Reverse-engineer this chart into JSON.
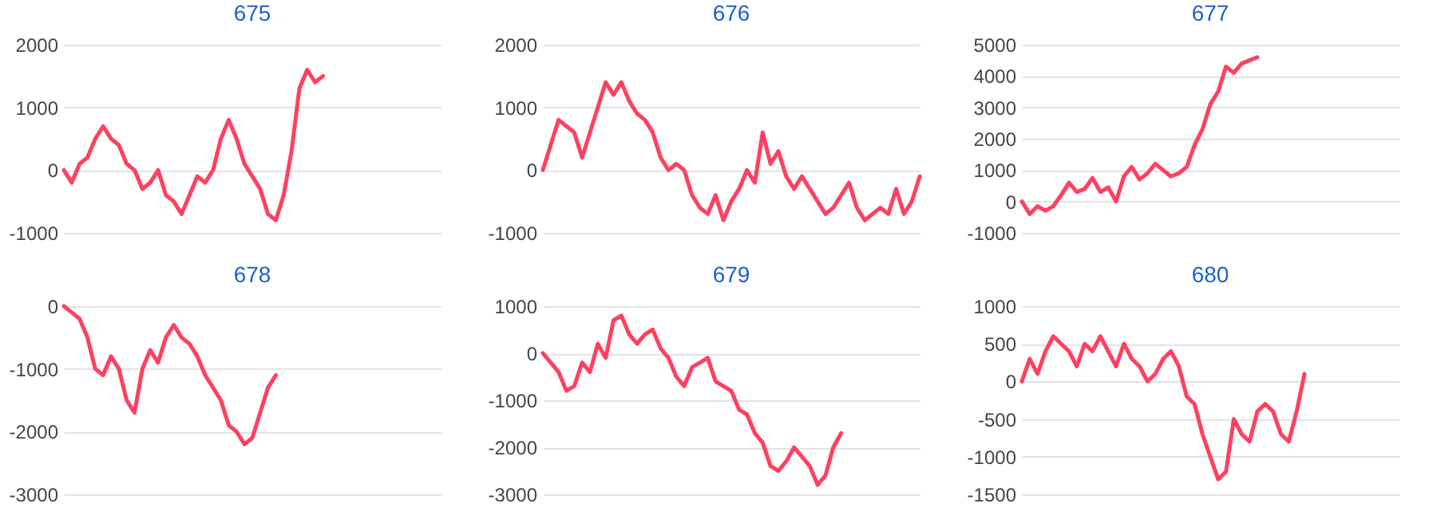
{
  "chart_data": [
    {
      "type": "line",
      "title": "675",
      "categories": [
        null,
        null,
        null,
        null,
        null,
        null,
        null,
        null,
        null,
        null,
        null,
        null,
        null,
        null,
        null,
        null,
        null,
        null,
        null,
        null,
        null,
        null,
        null,
        null,
        null,
        null,
        null,
        null,
        null,
        null,
        null,
        null,
        null,
        null,
        null,
        null,
        null,
        null,
        null,
        null,
        null,
        null,
        null,
        null,
        null,
        null,
        null,
        null,
        null
      ],
      "series": [
        {
          "color": "#ff4060",
          "values": [
            0,
            -200,
            100,
            200,
            500,
            700,
            500,
            400,
            100,
            0,
            -300,
            -200,
            0,
            -400,
            -500,
            -700,
            -400,
            -100,
            -200,
            0,
            500,
            800,
            500,
            100,
            -100,
            -300,
            -700,
            -800,
            -400,
            300,
            1300,
            1600,
            1400,
            1500,
            null,
            null,
            null,
            null,
            null,
            null,
            null,
            null,
            null,
            null,
            null,
            null,
            null,
            null,
            null
          ]
        }
      ],
      "ylim": [
        -1000,
        2000
      ],
      "yticks": [
        -1000,
        0,
        1000,
        2000
      ],
      "grid": "y",
      "tick_labels": "y",
      "marker": "none"
    },
    {
      "type": "line",
      "title": "676",
      "categories": [
        null,
        null,
        null,
        null,
        null,
        null,
        null,
        null,
        null,
        null,
        null,
        null,
        null,
        null,
        null,
        null,
        null,
        null,
        null,
        null,
        null,
        null,
        null,
        null,
        null,
        null,
        null,
        null,
        null,
        null,
        null,
        null,
        null,
        null,
        null,
        null,
        null,
        null,
        null,
        null,
        null,
        null,
        null,
        null,
        null,
        null,
        null,
        null,
        null
      ],
      "series": [
        {
          "color": "#ff4060",
          "values": [
            0,
            400,
            800,
            700,
            600,
            200,
            600,
            1000,
            1400,
            1200,
            1400,
            1100,
            900,
            800,
            600,
            200,
            0,
            100,
            0,
            -400,
            -600,
            -700,
            -400,
            -800,
            -500,
            -300,
            0,
            -200,
            600,
            100,
            300,
            -100,
            -300,
            -100,
            -300,
            -500,
            -700,
            -600,
            -400,
            -200,
            -600,
            -800,
            -700,
            -600,
            -700,
            -300,
            -700,
            -500,
            -100
          ]
        }
      ],
      "ylim": [
        -1000,
        2000
      ],
      "yticks": [
        -1000,
        0,
        1000,
        2000
      ],
      "grid": "y",
      "tick_labels": "y",
      "marker": "none"
    },
    {
      "type": "line",
      "title": "677",
      "categories": [
        null,
        null,
        null,
        null,
        null,
        null,
        null,
        null,
        null,
        null,
        null,
        null,
        null,
        null,
        null,
        null,
        null,
        null,
        null,
        null,
        null,
        null,
        null,
        null,
        null,
        null,
        null,
        null,
        null,
        null,
        null,
        null,
        null,
        null,
        null,
        null,
        null,
        null,
        null,
        null,
        null,
        null,
        null,
        null,
        null,
        null,
        null,
        null,
        null
      ],
      "series": [
        {
          "color": "#ff4060",
          "values": [
            0,
            -400,
            -150,
            -300,
            -150,
            200,
            600,
            300,
            400,
            750,
            300,
            450,
            0,
            800,
            1100,
            700,
            900,
            1200,
            1000,
            800,
            900,
            1100,
            1800,
            2300,
            3100,
            3500,
            4300,
            4100,
            4400,
            4500,
            4600,
            null,
            null,
            null,
            null,
            null,
            null,
            null,
            null,
            null,
            null,
            null,
            null,
            null,
            null,
            null,
            null,
            null,
            null
          ]
        }
      ],
      "ylim": [
        -1000,
        5000
      ],
      "yticks": [
        -1000,
        0,
        1000,
        2000,
        3000,
        4000,
        5000
      ],
      "grid": "y",
      "tick_labels": "y",
      "marker": "none"
    },
    {
      "type": "line",
      "title": "678",
      "categories": [
        null,
        null,
        null,
        null,
        null,
        null,
        null,
        null,
        null,
        null,
        null,
        null,
        null,
        null,
        null,
        null,
        null,
        null,
        null,
        null,
        null,
        null,
        null,
        null,
        null,
        null,
        null,
        null,
        null,
        null,
        null,
        null,
        null,
        null,
        null,
        null,
        null,
        null,
        null,
        null,
        null,
        null,
        null,
        null,
        null,
        null,
        null,
        null,
        null
      ],
      "series": [
        {
          "color": "#ff4060",
          "values": [
            0,
            -100,
            -200,
            -500,
            -1000,
            -1100,
            -800,
            -1000,
            -1500,
            -1700,
            -1000,
            -700,
            -900,
            -500,
            -300,
            -500,
            -600,
            -800,
            -1100,
            -1300,
            -1500,
            -1900,
            -2000,
            -2200,
            -2100,
            -1700,
            -1300,
            -1100,
            null,
            null,
            null,
            null,
            null,
            null,
            null,
            null,
            null,
            null,
            null,
            null,
            null,
            null,
            null,
            null,
            null,
            null,
            null,
            null,
            null
          ]
        }
      ],
      "ylim": [
        -3000,
        0
      ],
      "yticks": [
        -3000,
        -2000,
        -1000,
        0
      ],
      "grid": "y",
      "tick_labels": "y",
      "marker": "none"
    },
    {
      "type": "line",
      "title": "679",
      "categories": [
        null,
        null,
        null,
        null,
        null,
        null,
        null,
        null,
        null,
        null,
        null,
        null,
        null,
        null,
        null,
        null,
        null,
        null,
        null,
        null,
        null,
        null,
        null,
        null,
        null,
        null,
        null,
        null,
        null,
        null,
        null,
        null,
        null,
        null,
        null,
        null,
        null,
        null,
        null,
        null,
        null,
        null,
        null,
        null,
        null,
        null,
        null,
        null,
        null
      ],
      "series": [
        {
          "color": "#ff4060",
          "values": [
            0,
            -200,
            -400,
            -800,
            -700,
            -200,
            -400,
            200,
            -100,
            700,
            800,
            400,
            200,
            400,
            500,
            100,
            -100,
            -500,
            -700,
            -300,
            -200,
            -100,
            -600,
            -700,
            -800,
            -1200,
            -1300,
            -1700,
            -1900,
            -2400,
            -2500,
            -2300,
            -2000,
            -2200,
            -2400,
            -2800,
            -2600,
            -2000,
            -1700,
            null,
            null,
            null,
            null,
            null,
            null,
            null,
            null,
            null,
            null
          ]
        }
      ],
      "ylim": [
        -3000,
        1000
      ],
      "yticks": [
        -3000,
        -2000,
        -1000,
        0,
        1000
      ],
      "grid": "y",
      "tick_labels": "y",
      "marker": "none"
    },
    {
      "type": "line",
      "title": "680",
      "categories": [
        null,
        null,
        null,
        null,
        null,
        null,
        null,
        null,
        null,
        null,
        null,
        null,
        null,
        null,
        null,
        null,
        null,
        null,
        null,
        null,
        null,
        null,
        null,
        null,
        null,
        null,
        null,
        null,
        null,
        null,
        null,
        null,
        null,
        null,
        null,
        null,
        null,
        null,
        null,
        null,
        null,
        null,
        null,
        null,
        null,
        null,
        null,
        null,
        null
      ],
      "series": [
        {
          "color": "#ff4060",
          "values": [
            0,
            300,
            100,
            400,
            600,
            500,
            400,
            200,
            500,
            400,
            600,
            400,
            200,
            500,
            300,
            200,
            0,
            100,
            300,
            400,
            200,
            -200,
            -300,
            -700,
            -1000,
            -1300,
            -1200,
            -500,
            -700,
            -800,
            -400,
            -300,
            -400,
            -700,
            -800,
            -400,
            100,
            null,
            null,
            null,
            null,
            null,
            null,
            null,
            null,
            null,
            null,
            null,
            null
          ]
        }
      ],
      "ylim": [
        -1500,
        1000
      ],
      "yticks": [
        -1500,
        -1000,
        -500,
        0,
        500,
        1000
      ],
      "grid": "y",
      "tick_labels": "y",
      "marker": "none"
    }
  ]
}
